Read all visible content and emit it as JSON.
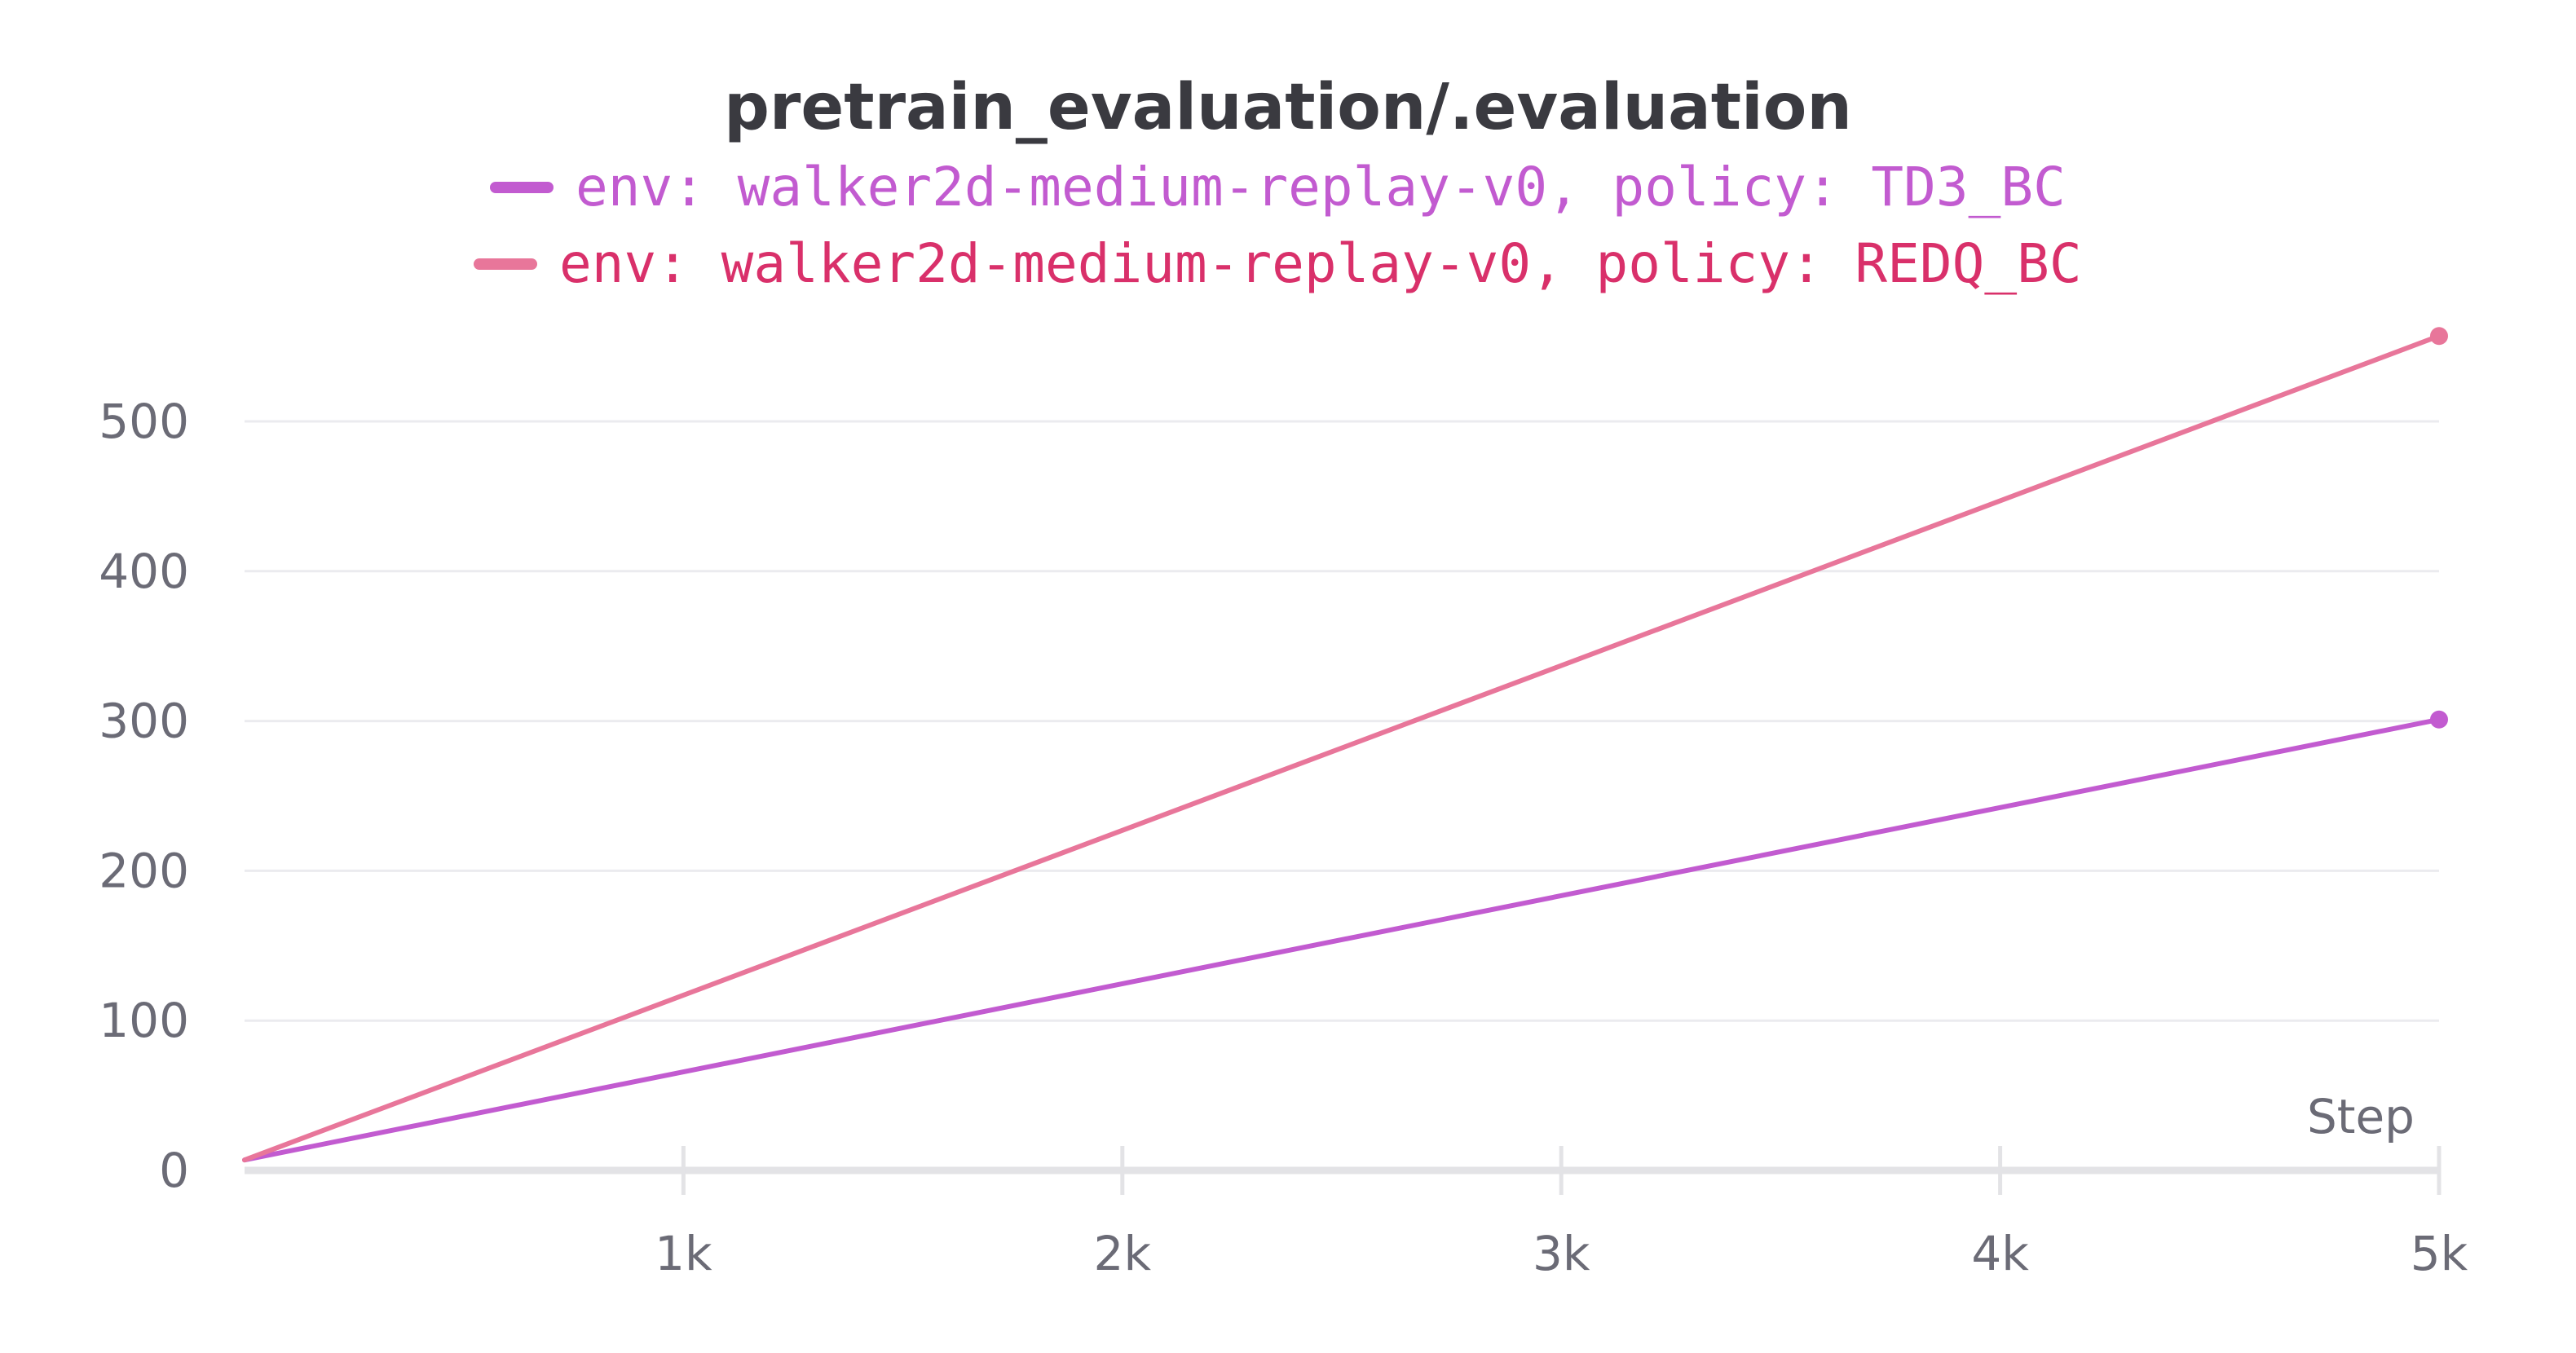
{
  "chart_data": {
    "type": "line",
    "title": "pretrain_evaluation/.evaluation",
    "xlabel": "Step",
    "ylabel": "",
    "xlim": [
      0,
      5000
    ],
    "ylim": [
      0,
      560
    ],
    "x_ticks": [
      {
        "value": 1000,
        "label": "1k"
      },
      {
        "value": 2000,
        "label": "2k"
      },
      {
        "value": 3000,
        "label": "3k"
      },
      {
        "value": 4000,
        "label": "4k"
      },
      {
        "value": 5000,
        "label": "5k"
      }
    ],
    "y_ticks": [
      {
        "value": 0,
        "label": "0"
      },
      {
        "value": 100,
        "label": "100"
      },
      {
        "value": 200,
        "label": "200"
      },
      {
        "value": 300,
        "label": "300"
      },
      {
        "value": 400,
        "label": "400"
      },
      {
        "value": 500,
        "label": "500"
      }
    ],
    "grid": true,
    "legend_position": "top",
    "series": [
      {
        "name": "env: walker2d-medium-replay-v0, policy: TD3_BC",
        "color": "#c25bd0",
        "x": [
          0,
          5000
        ],
        "y": [
          7,
          301
        ]
      },
      {
        "name": "env: walker2d-medium-replay-v0, policy: REDQ_BC",
        "color": "#e8769a",
        "legend_text_color": "#d9306a",
        "x": [
          0,
          5000
        ],
        "y": [
          7,
          557
        ]
      }
    ]
  }
}
